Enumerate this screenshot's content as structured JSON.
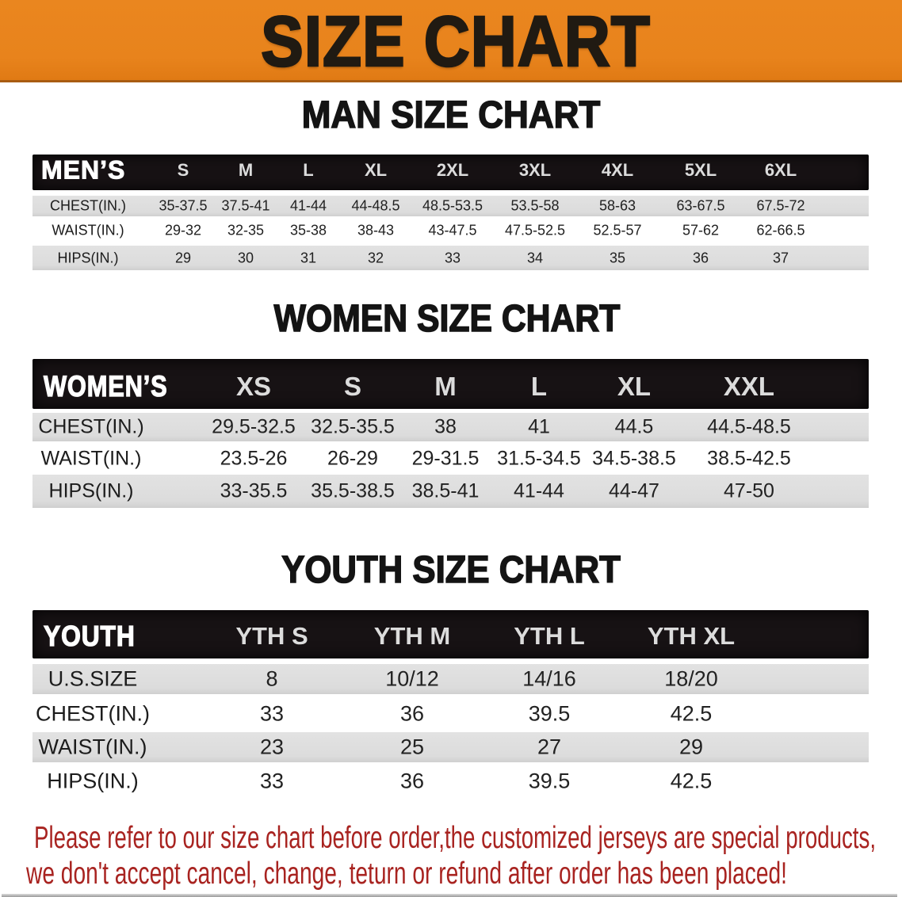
{
  "banner": {
    "title": "SIZE CHART"
  },
  "sections": [
    {
      "heading": "MAN SIZE CHART",
      "table": {
        "label": "MEN’S",
        "columns": [
          "S",
          "M",
          "L",
          "XL",
          "2XL",
          "3XL",
          "4XL",
          "5XL",
          "6XL"
        ],
        "rows": [
          {
            "label": "CHEST(IN.)",
            "values": [
              "35-37.5",
              "37.5-41",
              "41-44",
              "44-48.5",
              "48.5-53.5",
              "53.5-58",
              "58-63",
              "63-67.5",
              "67.5-72"
            ]
          },
          {
            "label": "WAIST(IN.)",
            "values": [
              "29-32",
              "32-35",
              "35-38",
              "38-43",
              "43-47.5",
              "47.5-52.5",
              "52.5-57",
              "57-62",
              "62-66.5"
            ]
          },
          {
            "label": "HIPS(IN.)",
            "values": [
              "29",
              "30",
              "31",
              "32",
              "33",
              "34",
              "35",
              "36",
              "37"
            ]
          }
        ]
      }
    },
    {
      "heading": "WOMEN SIZE CHART",
      "table": {
        "label": "WOMEN’S",
        "columns": [
          "XS",
          "S",
          "M",
          "L",
          "XL",
          "XXL"
        ],
        "rows": [
          {
            "label": "CHEST(IN.)",
            "values": [
              "29.5-32.5",
              "32.5-35.5",
              "38",
              "41",
              "44.5",
              "44.5-48.5"
            ]
          },
          {
            "label": "WAIST(IN.)",
            "values": [
              "23.5-26",
              "26-29",
              "29-31.5",
              "31.5-34.5",
              "34.5-38.5",
              "38.5-42.5"
            ]
          },
          {
            "label": "HIPS(IN.)",
            "values": [
              "33-35.5",
              "35.5-38.5",
              "38.5-41",
              "41-44",
              "44-47",
              "47-50"
            ]
          }
        ]
      }
    },
    {
      "heading": "YOUTH SIZE CHART",
      "table": {
        "label": "YOUTH",
        "columns": [
          "YTH S",
          "YTH M",
          "YTH L",
          "YTH XL"
        ],
        "rows": [
          {
            "label": "U.S.SIZE",
            "values": [
              "8",
              "10/12",
              "14/16",
              "18/20"
            ]
          },
          {
            "label": "CHEST(IN.)",
            "values": [
              "33",
              "36",
              "39.5",
              "42.5"
            ]
          },
          {
            "label": "WAIST(IN.)",
            "values": [
              "23",
              "25",
              "27",
              "29"
            ]
          },
          {
            "label": "HIPS(IN.)",
            "values": [
              "33",
              "36",
              "39.5",
              "42.5"
            ]
          }
        ]
      }
    }
  ],
  "footer": {
    "line1": "Please refer to our size chart before order,the customized jerseys are special products,",
    "line2": "we don't accept cancel, change, teturn or refund after order has been placed!"
  },
  "colors": {
    "banner_bg": "#e9831c",
    "header_band": "#171214",
    "row_gray": "#dedede",
    "note_red": "#a82320",
    "bottom_bar": "#9a9a9a"
  }
}
